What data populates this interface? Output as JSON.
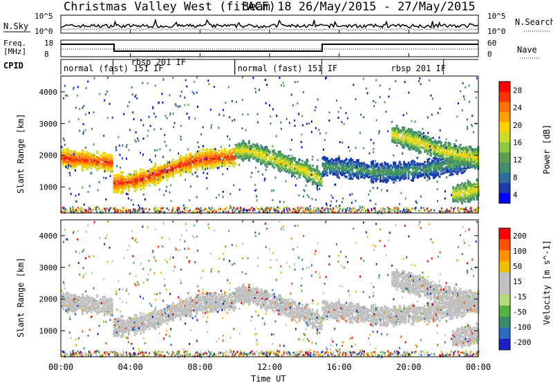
{
  "title": {
    "station": "Christmas Valley West (fitACF)",
    "beam": "Beam 18  26/May/2015 - 27/May/2015"
  },
  "header": {
    "nsky_label": "N.Sky",
    "nsky_ticks": [
      "10^5",
      "10^0"
    ],
    "nsearch_label": "N.Search",
    "nsearch_ticks": [
      "10^5",
      "10^0"
    ],
    "freq_label": [
      "Freq.",
      "[MHz]"
    ],
    "freq_ticks": [
      "18",
      "8"
    ],
    "nave_label": "Nave",
    "nave_ticks": [
      "60",
      "0"
    ],
    "cpid_label": "CPID"
  },
  "cpid_segments": [
    {
      "label": "normal (fast) 151 IF",
      "start": 0,
      "end": 3
    },
    {
      "label": "rbsp 201 IF",
      "start": 3,
      "end": 10
    },
    {
      "label": "normal (fast) 151 IF",
      "start": 10,
      "end": 15
    },
    {
      "label": "rbsp 201 IF",
      "start": 15,
      "end": 22
    }
  ],
  "x_axis": {
    "label": "Time UT",
    "range_hours": [
      0,
      24
    ],
    "tick_labels": [
      "00:00",
      "04:00",
      "08:00",
      "12:00",
      "16:00",
      "20:00",
      "00:00"
    ]
  },
  "panels": [
    {
      "ylabel": "Slant Range [km]",
      "ylim": [
        180,
        4500
      ],
      "yticks": [
        "4000",
        "3000",
        "2000",
        "1000"
      ]
    },
    {
      "ylabel": "Slant Range [km]",
      "ylim": [
        180,
        4500
      ],
      "yticks": [
        "4000",
        "3000",
        "2000",
        "1000"
      ]
    }
  ],
  "colorbars": {
    "power": {
      "label": "Power [dB]",
      "ticks": [
        "28",
        "24",
        "20",
        "16",
        "12",
        "8",
        "4"
      ],
      "colors": [
        "#0000ff",
        "#1b3bb0",
        "#2e6e9e",
        "#3f8f6a",
        "#5aa050",
        "#8cc83c",
        "#c8dc28",
        "#ffd000",
        "#ffa000",
        "#ff7000",
        "#ff3000",
        "#ff0000"
      ]
    },
    "velocity": {
      "label": "Velocity [m s^-1]",
      "ticks": [
        "200",
        "100",
        "50",
        "15",
        "-15",
        "-50",
        "-100",
        "-200"
      ],
      "colors": [
        "#1e1ec8",
        "#2a6ec4",
        "#3a8c6c",
        "#52b43c",
        "#b4dc78",
        "#c0c0c0",
        "#c0c0c0",
        "#f0c000",
        "#ff9000",
        "#ff5000",
        "#ff0000"
      ]
    }
  },
  "chart_data": {
    "type": "heatmap",
    "description_units": {
      "x": "hours UT",
      "y": "slant range km"
    },
    "power_bands": [
      {
        "x": [
          0,
          1,
          2,
          2.9
        ],
        "y": [
          1950,
          1900,
          1850,
          1800
        ],
        "value": "high"
      },
      {
        "x": [
          3,
          4,
          5,
          6,
          7,
          8,
          9,
          10
        ],
        "y": [
          1150,
          1200,
          1350,
          1550,
          1750,
          1900,
          1950,
          2000
        ],
        "value": "high"
      },
      {
        "x": [
          10,
          11,
          12,
          13,
          14,
          15
        ],
        "y": [
          2200,
          2150,
          1950,
          1750,
          1550,
          1250
        ],
        "value": "medium"
      },
      {
        "x": [
          15,
          16,
          17,
          18,
          19,
          20,
          21,
          22,
          23,
          24
        ],
        "y": [
          1700,
          1650,
          1600,
          1500,
          1500,
          1550,
          1600,
          1700,
          1800,
          1950
        ],
        "value": "low"
      },
      {
        "x": [
          19,
          20,
          21,
          22,
          23,
          24
        ],
        "y": [
          2700,
          2550,
          2350,
          2150,
          2050,
          1950
        ],
        "value": "medium"
      },
      {
        "x": [
          22.5,
          23,
          23.5,
          24
        ],
        "y": [
          800,
          850,
          900,
          1000
        ],
        "value": "medium"
      }
    ]
  }
}
